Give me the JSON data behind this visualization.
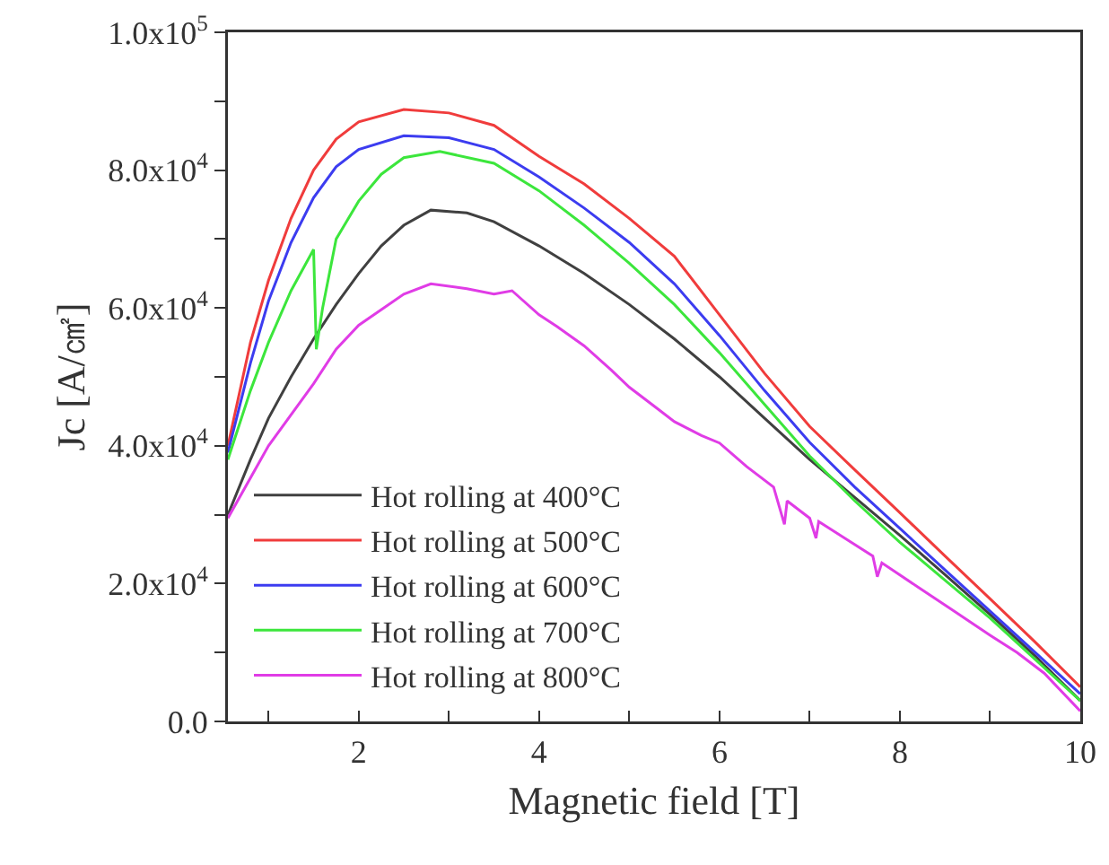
{
  "chart_data": {
    "type": "line",
    "xlabel": "Magnetic field [T]",
    "ylabel": "Jc [A/㎠]",
    "xlim": [
      0.55,
      10
    ],
    "ylim": [
      0,
      100000
    ],
    "xticks": [
      {
        "value": 1,
        "label": null
      },
      2,
      {
        "value": 3,
        "label": null
      },
      4,
      {
        "value": 5,
        "label": null
      },
      6,
      {
        "value": 7,
        "label": null
      },
      8,
      {
        "value": 9,
        "label": null
      },
      10
    ],
    "yticks": [
      {
        "value": 0,
        "label": "0.0"
      },
      {
        "value": 10000,
        "label": null
      },
      {
        "value": 20000,
        "label": "2.0x10$^{4}$"
      },
      {
        "value": 30000,
        "label": null
      },
      {
        "value": 40000,
        "label": "4.0x10$^{4}$"
      },
      {
        "value": 50000,
        "label": null
      },
      {
        "value": 60000,
        "label": "6.0x10$^{4}$"
      },
      {
        "value": 70000,
        "label": null
      },
      {
        "value": 80000,
        "label": "8.0x10$^{4}$"
      },
      {
        "value": 90000,
        "label": null
      },
      {
        "value": 100000,
        "label": "1.0x10$^{5}$"
      }
    ],
    "grid": false,
    "legend": "bottom left",
    "marker": "none",
    "line_style": "solid",
    "series": [
      {
        "name": "Hot rolling at 400°C",
        "color": "#404040",
        "x": [
          0.55,
          0.8,
          1.0,
          1.25,
          1.5,
          1.75,
          2,
          2.25,
          2.5,
          2.8,
          3.2,
          3.5,
          4,
          4.5,
          5,
          5.5,
          6,
          6.5,
          7,
          7.5,
          8,
          8.5,
          9,
          9.5,
          10
        ],
        "values": [
          30000,
          38000,
          44000,
          50000,
          55500,
          60500,
          65000,
          69000,
          72000,
          74200,
          73800,
          72500,
          69000,
          65000,
          60500,
          55500,
          50000,
          44000,
          38000,
          32500,
          27000,
          21300,
          15500,
          9500,
          3000
        ]
      },
      {
        "name": "Hot rolling at 500°C",
        "color": "#f03c3c",
        "x": [
          0.55,
          0.8,
          1.0,
          1.25,
          1.5,
          1.75,
          2,
          2.5,
          3,
          3.5,
          4,
          4.5,
          5,
          5.5,
          6,
          6.5,
          7,
          7.5,
          8,
          8.5,
          9,
          9.5,
          10
        ],
        "values": [
          40000,
          55000,
          64000,
          73000,
          80000,
          84500,
          87000,
          88800,
          88300,
          86500,
          82000,
          78000,
          73000,
          67500,
          59000,
          50500,
          42800,
          36500,
          30300,
          24000,
          17800,
          11500,
          5000
        ]
      },
      {
        "name": "Hot rolling at 600°C",
        "color": "#3c3cf0",
        "x": [
          0.55,
          0.8,
          1.0,
          1.25,
          1.5,
          1.75,
          2,
          2.5,
          3,
          3.5,
          4,
          4.5,
          5,
          5.5,
          6,
          6.5,
          7,
          7.5,
          8,
          8.5,
          9,
          9.5,
          10
        ],
        "values": [
          39000,
          52000,
          61000,
          69500,
          76000,
          80500,
          83000,
          85000,
          84700,
          83000,
          79000,
          74500,
          69500,
          63500,
          56000,
          48000,
          40500,
          34000,
          28000,
          22000,
          16000,
          10000,
          4000
        ]
      },
      {
        "name": "Hot rolling at 700°C",
        "color": "#3ce63c",
        "x": [
          0.55,
          0.8,
          1.0,
          1.25,
          1.5,
          1.53,
          1.6,
          1.75,
          2,
          2.25,
          2.5,
          2.9,
          3.5,
          4,
          4.5,
          5,
          5.5,
          6,
          6.5,
          7,
          7.5,
          8,
          8.5,
          9,
          9.5,
          10
        ],
        "values": [
          38000,
          48000,
          55000,
          62500,
          68500,
          54000,
          60000,
          70000,
          75500,
          79400,
          81800,
          82700,
          81000,
          77000,
          72000,
          66500,
          60500,
          53500,
          46000,
          38500,
          32000,
          26000,
          20500,
          15000,
          9000,
          3000
        ]
      },
      {
        "name": "Hot rolling at 800°C",
        "color": "#e03ce6",
        "x": [
          0.55,
          1.0,
          1.5,
          1.75,
          2,
          2.5,
          2.8,
          3.2,
          3.5,
          3.7,
          4,
          4.2,
          4.5,
          4.8,
          5,
          5.3,
          5.5,
          5.8,
          6,
          6.3,
          6.6,
          6.72,
          6.75,
          7,
          7.07,
          7.1,
          7.4,
          7.7,
          7.75,
          7.8,
          8.2,
          8.6,
          9,
          9.3,
          9.6,
          10
        ],
        "values": [
          29500,
          40000,
          49000,
          54000,
          57500,
          62000,
          63500,
          62800,
          62000,
          62500,
          59000,
          57300,
          54500,
          51000,
          48500,
          45500,
          43500,
          41500,
          40400,
          37000,
          34000,
          28600,
          32000,
          29500,
          26600,
          29000,
          26500,
          24000,
          21000,
          23000,
          19500,
          16000,
          12500,
          10000,
          7000,
          1500
        ]
      }
    ]
  }
}
